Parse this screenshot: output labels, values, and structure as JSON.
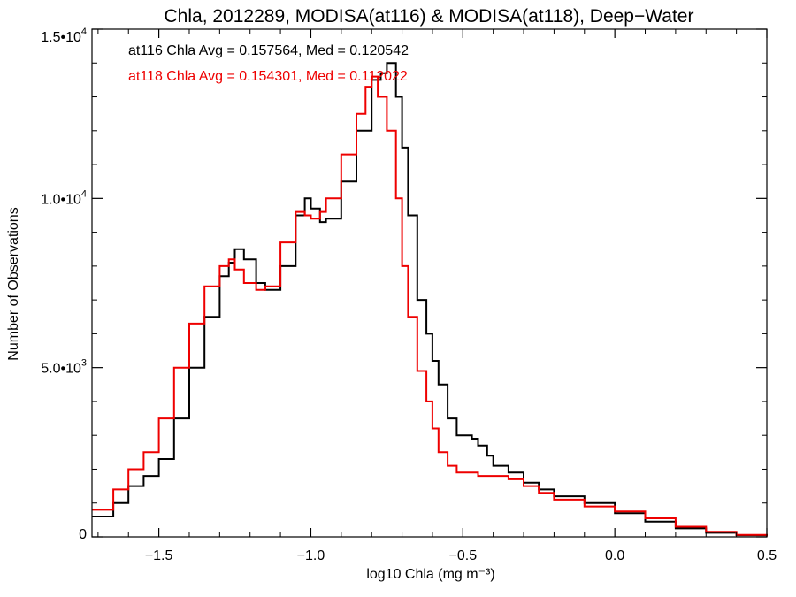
{
  "chart_data": {
    "type": "line",
    "style": "histogram-step",
    "title": "Chla, 2012289, MODISA(at116) & MODISA(at118), Deep−Water",
    "xlabel": "log10 Chla (mg m⁻³)",
    "ylabel": "Number of Observations",
    "xlim": [
      -1.72,
      0.5
    ],
    "ylim": [
      0,
      15000
    ],
    "x_ticks": [
      -1.5,
      -1.0,
      -0.5,
      0.0,
      0.5
    ],
    "x_tick_labels": [
      "−1.5",
      "−1.0",
      "−0.5",
      "0.0",
      "0.5"
    ],
    "y_ticks": [
      0,
      5000,
      10000,
      15000
    ],
    "y_tick_labels": [
      {
        "mant": "0",
        "exp": ""
      },
      {
        "mant": "5.0•10",
        "exp": "3"
      },
      {
        "mant": "1.0•10",
        "exp": "4"
      },
      {
        "mant": "1.5•10",
        "exp": "4"
      }
    ],
    "grid": false,
    "legend_position": "top-left",
    "annotations": [
      {
        "text": "at116 Chla Avg = 0.157564, Med = 0.120542",
        "color": "#000000"
      },
      {
        "text": "at118 Chla Avg = 0.154301, Med = 0.112022",
        "color": "#ee0000"
      }
    ],
    "series": [
      {
        "color": "#000000",
        "x": [
          -1.72,
          -1.65,
          -1.6,
          -1.55,
          -1.5,
          -1.45,
          -1.4,
          -1.35,
          -1.3,
          -1.27,
          -1.25,
          -1.22,
          -1.18,
          -1.15,
          -1.1,
          -1.05,
          -1.02,
          -1.0,
          -0.97,
          -0.95,
          -0.9,
          -0.85,
          -0.8,
          -0.77,
          -0.75,
          -0.72,
          -0.7,
          -0.68,
          -0.65,
          -0.62,
          -0.6,
          -0.58,
          -0.55,
          -0.52,
          -0.5,
          -0.47,
          -0.45,
          -0.42,
          -0.4,
          -0.35,
          -0.3,
          -0.25,
          -0.2,
          -0.1,
          0.0,
          0.1,
          0.2,
          0.3,
          0.4,
          0.5
        ],
        "y": [
          600,
          1000,
          1500,
          1800,
          2300,
          3500,
          5000,
          6500,
          7700,
          8100,
          8500,
          8200,
          7500,
          7300,
          8000,
          9500,
          10000,
          9700,
          9300,
          9400,
          10500,
          12000,
          13500,
          13700,
          14000,
          13000,
          11500,
          9500,
          7000,
          6000,
          5200,
          4500,
          3500,
          3000,
          3000,
          2900,
          2700,
          2400,
          2100,
          1900,
          1600,
          1400,
          1200,
          1000,
          700,
          450,
          250,
          120,
          50,
          20
        ]
      },
      {
        "color": "#ee0000",
        "x": [
          -1.72,
          -1.65,
          -1.6,
          -1.55,
          -1.5,
          -1.45,
          -1.4,
          -1.35,
          -1.3,
          -1.27,
          -1.25,
          -1.22,
          -1.18,
          -1.15,
          -1.1,
          -1.05,
          -1.02,
          -1.0,
          -0.97,
          -0.95,
          -0.9,
          -0.85,
          -0.82,
          -0.8,
          -0.78,
          -0.75,
          -0.72,
          -0.7,
          -0.68,
          -0.65,
          -0.62,
          -0.6,
          -0.58,
          -0.55,
          -0.52,
          -0.5,
          -0.47,
          -0.45,
          -0.42,
          -0.4,
          -0.35,
          -0.3,
          -0.25,
          -0.2,
          -0.1,
          0.0,
          0.1,
          0.2,
          0.3,
          0.4,
          0.5
        ],
        "y": [
          800,
          1400,
          2000,
          2500,
          3500,
          5000,
          6300,
          7400,
          8000,
          8200,
          7900,
          7500,
          7300,
          7400,
          8700,
          9600,
          9500,
          9400,
          9600,
          10000,
          11300,
          12500,
          13300,
          13600,
          13000,
          12000,
          10000,
          8000,
          6500,
          4900,
          4000,
          3200,
          2500,
          2100,
          1900,
          1900,
          1900,
          1800,
          1800,
          1800,
          1700,
          1500,
          1300,
          1100,
          900,
          750,
          550,
          300,
          150,
          60,
          20
        ]
      }
    ]
  }
}
